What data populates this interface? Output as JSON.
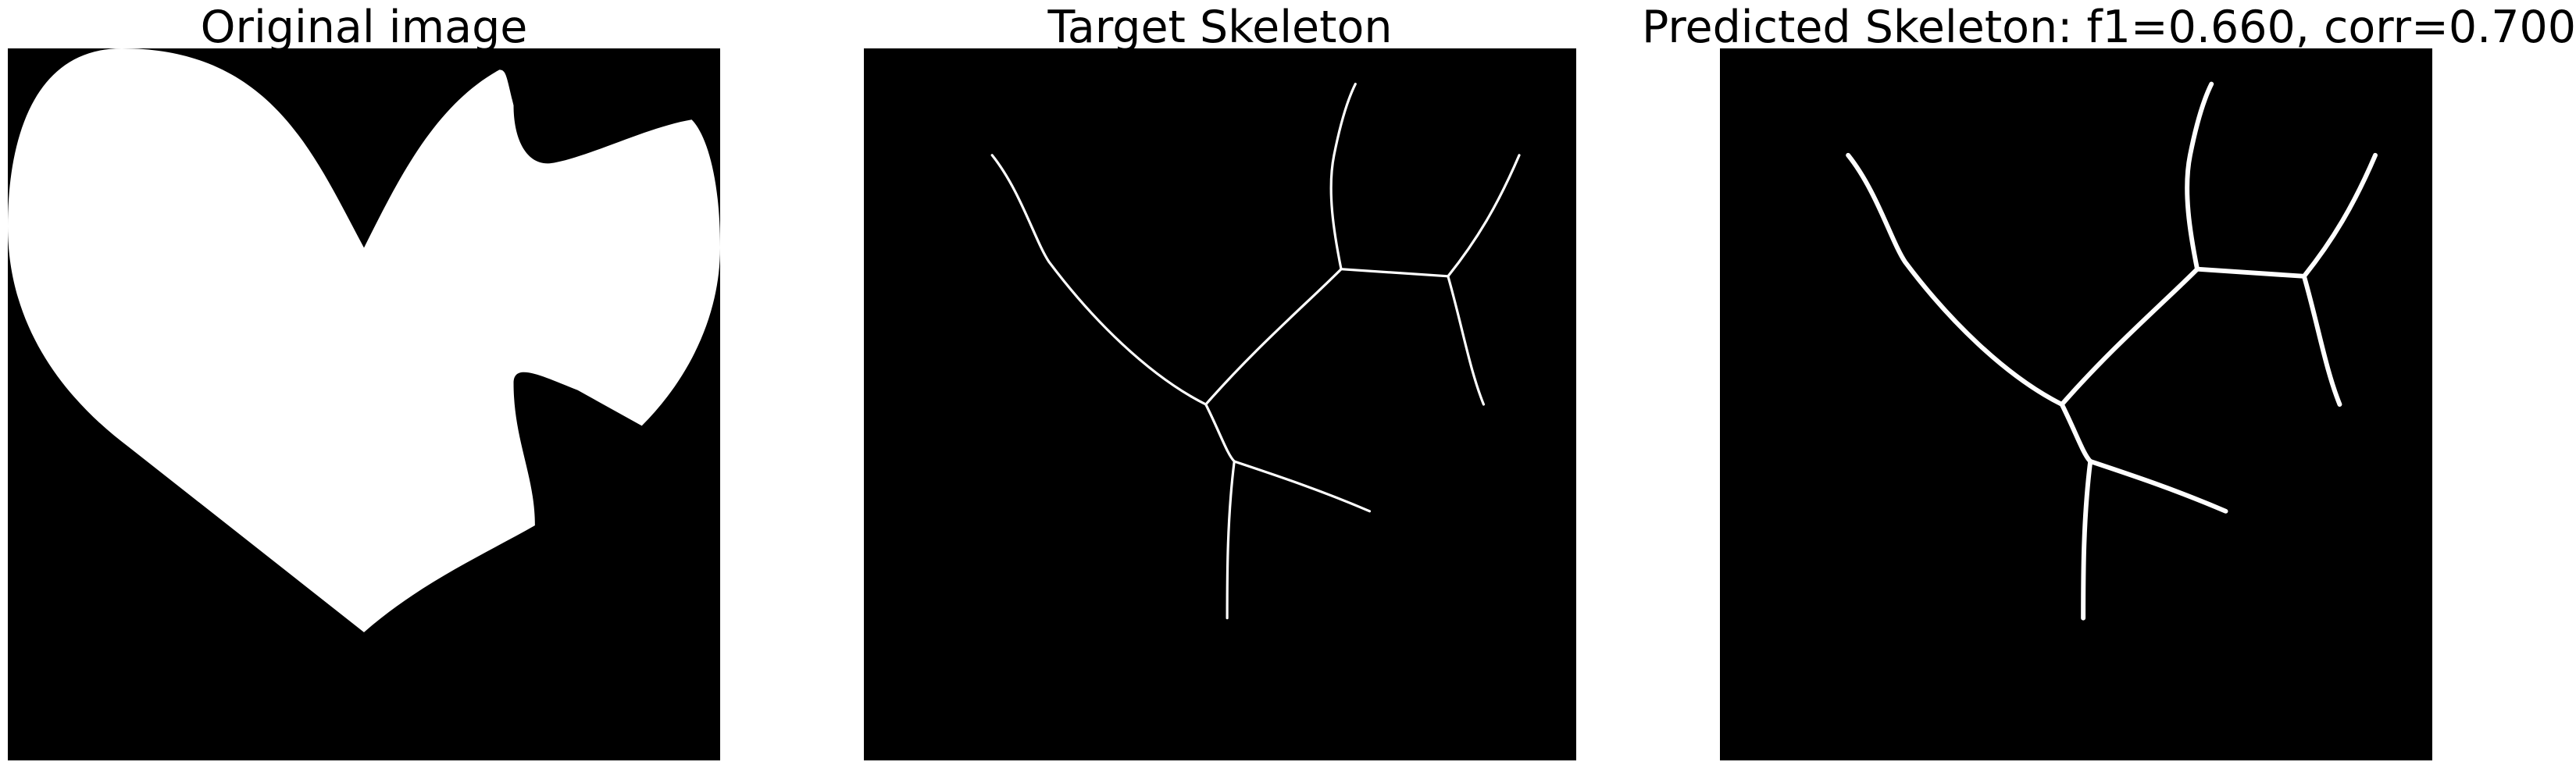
{
  "figure": {
    "background": "#ffffff",
    "panels": [
      {
        "title": "Original image",
        "content": "filled heart-like blob shape, white on black",
        "foreground_color": "#ffffff",
        "background_color": "#000000"
      },
      {
        "title": "Target Skeleton",
        "content": "thin branching skeleton lines, white on black",
        "foreground_color": "#ffffff",
        "background_color": "#000000"
      },
      {
        "title": "Predicted Skeleton: f1=0.660, corr=0.700",
        "content": "thicker branching skeleton lines, white on black",
        "foreground_color": "#ffffff",
        "background_color": "#000000"
      }
    ]
  }
}
